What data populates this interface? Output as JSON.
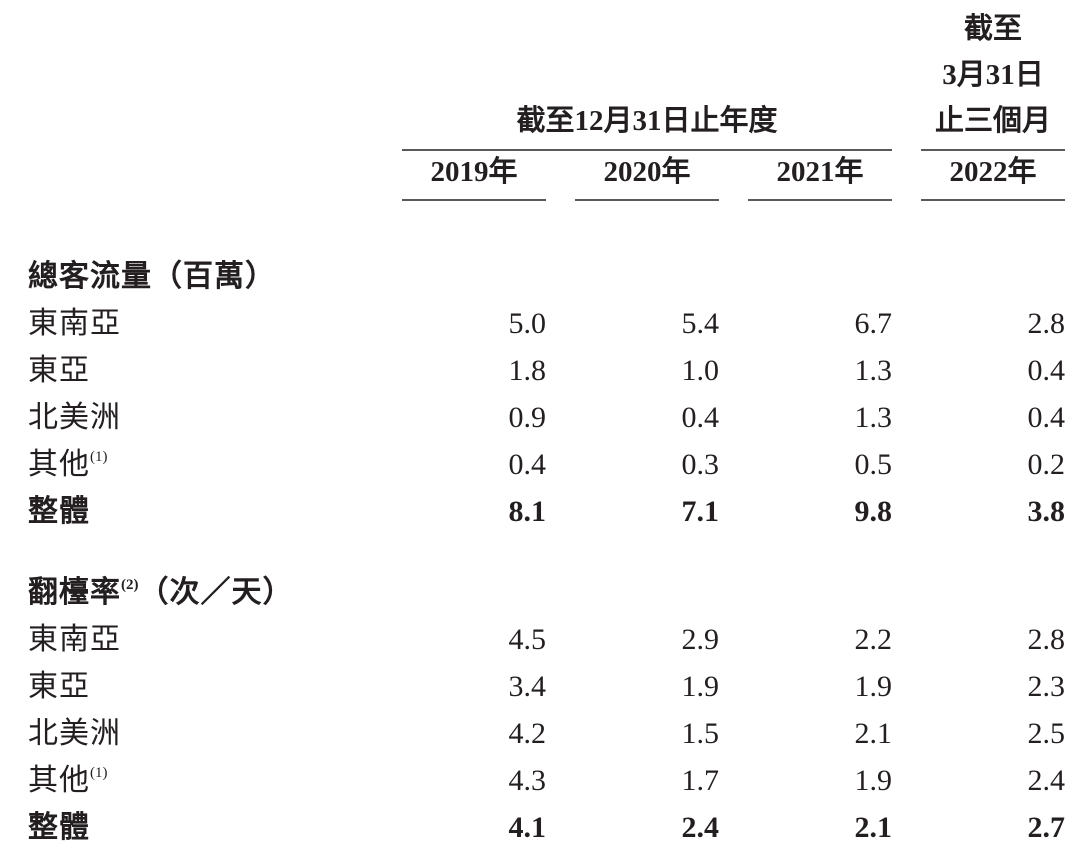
{
  "document": {
    "colors": {
      "text": "#231f20",
      "rule": "#58595b",
      "background": "#ffffff"
    },
    "header": {
      "annual_period_label": "截至12月31日止年度",
      "quarter_period_line1": "截至",
      "quarter_period_line2": "3月31日",
      "quarter_period_line3": "止三個月",
      "years": [
        "2019年",
        "2020年",
        "2021年",
        "2022年"
      ]
    },
    "sections": [
      {
        "title_pre": "總客流量（百萬）",
        "title_sup": "",
        "title_post": "",
        "rows": [
          {
            "label": "東南亞",
            "sup": "",
            "values": [
              "5.0",
              "5.4",
              "6.7",
              "2.8"
            ]
          },
          {
            "label": "東亞",
            "sup": "",
            "values": [
              "1.8",
              "1.0",
              "1.3",
              "0.4"
            ]
          },
          {
            "label": "北美洲",
            "sup": "",
            "values": [
              "0.9",
              "0.4",
              "1.3",
              "0.4"
            ]
          },
          {
            "label": "其他",
            "sup": "(1)",
            "values": [
              "0.4",
              "0.3",
              "0.5",
              "0.2"
            ]
          },
          {
            "label": "整體",
            "sup": "",
            "values": [
              "8.1",
              "7.1",
              "9.8",
              "3.8"
            ]
          }
        ]
      },
      {
        "title_pre": "翻檯率",
        "title_sup": "(2)",
        "title_post": "（次／天）",
        "rows": [
          {
            "label": "東南亞",
            "sup": "",
            "values": [
              "4.5",
              "2.9",
              "2.2",
              "2.8"
            ]
          },
          {
            "label": "東亞",
            "sup": "",
            "values": [
              "3.4",
              "1.9",
              "1.9",
              "2.3"
            ]
          },
          {
            "label": "北美洲",
            "sup": "",
            "values": [
              "4.2",
              "1.5",
              "2.1",
              "2.5"
            ]
          },
          {
            "label": "其他",
            "sup": "(1)",
            "values": [
              "4.3",
              "1.7",
              "1.9",
              "2.4"
            ]
          },
          {
            "label": "整體",
            "sup": "",
            "values": [
              "4.1",
              "2.4",
              "2.1",
              "2.7"
            ]
          }
        ]
      }
    ]
  }
}
